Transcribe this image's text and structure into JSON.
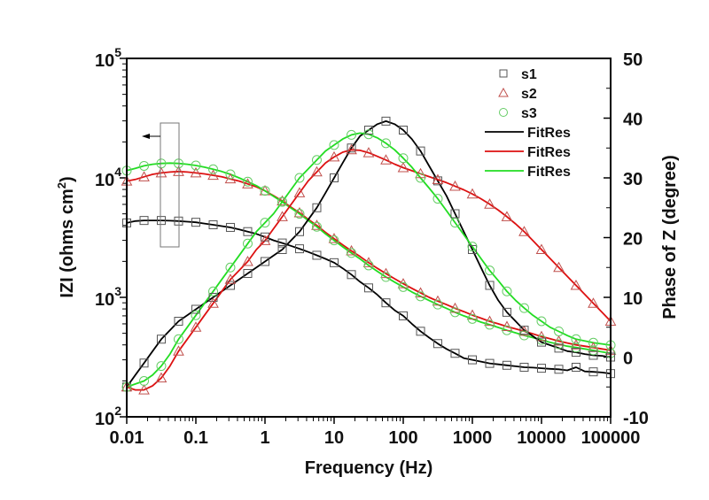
{
  "chart_data": {
    "type": "line",
    "xlabel": "Frequency (Hz)",
    "ylabel_left": "IZI (ohms cm2)",
    "ylabel_left_parts": {
      "main": "IZI (ohms cm",
      "sup": "2",
      "end": ")"
    },
    "ylabel_right": "Phase of Z (degree)",
    "xscale": "log",
    "xlim": [
      0.01,
      100000
    ],
    "ylim_left": [
      100,
      100000
    ],
    "yscale_left": "log",
    "ylim_right": [
      -10,
      50
    ],
    "x_ticks": [
      "0.01",
      "0.1",
      "1",
      "10",
      "100",
      "1000",
      "10000",
      "100000"
    ],
    "y_left_ticks": [
      {
        "base": "10",
        "exp": "2"
      },
      {
        "base": "10",
        "exp": "3"
      },
      {
        "base": "10",
        "exp": "4"
      },
      {
        "base": "10",
        "exp": "5"
      }
    ],
    "y_right_ticks": [
      "-10",
      "0",
      "10",
      "20",
      "30",
      "40",
      "50"
    ],
    "legend_position": "top-right",
    "legend": [
      {
        "label": "s1",
        "kind": "marker",
        "marker": "square",
        "color": "#555555"
      },
      {
        "label": "s2",
        "kind": "marker",
        "marker": "triangle",
        "color": "#c0504d"
      },
      {
        "label": "s3",
        "kind": "marker",
        "marker": "circle",
        "color": "#66cc66"
      },
      {
        "label": "FitRes",
        "kind": "line",
        "color": "#000000"
      },
      {
        "label": "FitRes",
        "kind": "line",
        "color": "#dd1111"
      },
      {
        "label": "FitRes",
        "kind": "line",
        "color": "#22dd22"
      }
    ],
    "annotation": {
      "text": "",
      "arrow": "left",
      "points_to": "left axis"
    },
    "series": [
      {
        "name": "s1",
        "axis": "left",
        "quantity": "modulus",
        "marker": "square",
        "color": "#555555",
        "x": [
          0.01,
          0.0133,
          0.0178,
          0.0237,
          0.0316,
          0.0422,
          0.0562,
          0.075,
          0.1,
          0.133,
          0.178,
          0.237,
          0.316,
          0.422,
          0.562,
          0.75,
          1,
          1.33,
          1.78,
          2.37,
          3.16,
          4.22,
          5.62,
          7.5,
          10,
          13.3,
          17.8,
          23.7,
          31.6,
          42.2,
          56.2,
          75,
          100,
          133,
          178,
          237,
          316,
          422,
          562,
          750,
          1000,
          1330,
          1780,
          2370,
          3160,
          4220,
          5620,
          7500,
          10000,
          13300,
          17800,
          23700,
          31600,
          42200,
          56200,
          75000,
          100000
        ],
        "y": [
          4200,
          4350,
          4400,
          4400,
          4400,
          4380,
          4350,
          4300,
          4250,
          4150,
          4050,
          3950,
          3850,
          3700,
          3550,
          3400,
          3200,
          3000,
          2850,
          2700,
          2550,
          2400,
          2250,
          2100,
          1950,
          1750,
          1550,
          1350,
          1200,
          1050,
          900,
          780,
          700,
          600,
          520,
          460,
          410,
          370,
          340,
          310,
          300,
          290,
          280,
          275,
          270,
          265,
          260,
          258,
          255,
          252,
          250,
          245,
          260,
          240,
          238,
          235,
          230
        ]
      },
      {
        "name": "s2",
        "axis": "left",
        "quantity": "modulus",
        "marker": "triangle",
        "color": "#c0504d",
        "x": [
          0.01,
          0.0133,
          0.0178,
          0.0237,
          0.0316,
          0.0422,
          0.0562,
          0.075,
          0.1,
          0.133,
          0.178,
          0.237,
          0.316,
          0.422,
          0.562,
          0.75,
          1,
          1.33,
          1.78,
          2.37,
          3.16,
          4.22,
          5.62,
          7.5,
          10,
          13.3,
          17.8,
          23.7,
          31.6,
          42.2,
          56.2,
          75,
          100,
          133,
          178,
          237,
          316,
          422,
          562,
          750,
          1000,
          1330,
          1780,
          2370,
          3160,
          4220,
          5620,
          7500,
          10000,
          13300,
          17800,
          23700,
          31600,
          42200,
          56200,
          75000,
          100000
        ],
        "y": [
          9400,
          9700,
          10200,
          10700,
          11000,
          11200,
          11300,
          11200,
          11000,
          10800,
          10500,
          10200,
          9800,
          9400,
          8900,
          8400,
          7800,
          7100,
          6400,
          5700,
          5100,
          4500,
          4000,
          3500,
          3100,
          2750,
          2450,
          2200,
          1950,
          1750,
          1580,
          1430,
          1300,
          1190,
          1090,
          1000,
          930,
          870,
          810,
          760,
          710,
          670,
          630,
          600,
          570,
          545,
          520,
          495,
          470,
          450,
          430,
          415,
          400,
          390,
          380,
          370,
          360
        ]
      },
      {
        "name": "s3",
        "axis": "left",
        "quantity": "modulus",
        "marker": "circle",
        "color": "#66cc66",
        "x": [
          0.01,
          0.0133,
          0.0178,
          0.0237,
          0.0316,
          0.0422,
          0.0562,
          0.075,
          0.1,
          0.133,
          0.178,
          0.237,
          0.316,
          0.422,
          0.562,
          0.75,
          1,
          1.33,
          1.78,
          2.37,
          3.16,
          4.22,
          5.62,
          7.5,
          10,
          13.3,
          17.8,
          23.7,
          31.6,
          42.2,
          56.2,
          75,
          100,
          133,
          178,
          237,
          316,
          422,
          562,
          750,
          1000,
          1330,
          1780,
          2370,
          3160,
          4220,
          5620,
          7500,
          10000,
          13300,
          17800,
          23700,
          31600,
          42200,
          56200,
          75000,
          100000
        ],
        "y": [
          11500,
          12000,
          12600,
          13000,
          13200,
          13300,
          13200,
          13000,
          12700,
          12300,
          11800,
          11300,
          10700,
          10000,
          9300,
          8600,
          7800,
          7000,
          6300,
          5600,
          5000,
          4400,
          3900,
          3400,
          3000,
          2650,
          2350,
          2100,
          1850,
          1650,
          1480,
          1340,
          1220,
          1110,
          1020,
          940,
          870,
          810,
          750,
          700,
          660,
          620,
          590,
          560,
          530,
          505,
          480,
          460,
          440,
          420,
          405,
          390,
          380,
          370,
          360,
          350,
          340
        ]
      },
      {
        "name": "s1",
        "axis": "right",
        "quantity": "phase",
        "marker": "square",
        "color": "#555555",
        "x": [
          0.01,
          0.0133,
          0.0178,
          0.0237,
          0.0316,
          0.0422,
          0.0562,
          0.075,
          0.1,
          0.133,
          0.178,
          0.237,
          0.316,
          0.422,
          0.562,
          0.75,
          1,
          1.33,
          1.78,
          2.37,
          3.16,
          4.22,
          5.62,
          7.5,
          10,
          13.3,
          17.8,
          23.7,
          31.6,
          42.2,
          56.2,
          75,
          100,
          133,
          178,
          237,
          316,
          422,
          562,
          750,
          1000,
          1330,
          1780,
          2370,
          3160,
          4220,
          5620,
          7500,
          10000,
          13300,
          17800,
          23700,
          31600,
          42200,
          56200,
          75000,
          100000
        ],
        "y": [
          -5,
          -3,
          -1,
          1,
          3,
          4.5,
          6,
          7,
          8,
          9,
          10,
          11,
          12,
          13,
          14,
          15,
          16,
          17,
          18,
          19.5,
          21,
          23,
          25,
          27.5,
          30,
          32.5,
          35,
          37,
          38,
          39,
          39.5,
          39,
          38,
          36.5,
          34.5,
          32,
          29.5,
          27,
          24,
          21,
          18,
          15,
          12,
          9.5,
          7.5,
          6,
          4.5,
          3.5,
          2.5,
          2,
          1.5,
          1,
          0.8,
          0.5,
          0.3,
          0.2,
          0
        ]
      },
      {
        "name": "s2",
        "axis": "right",
        "quantity": "phase",
        "marker": "triangle",
        "color": "#c0504d",
        "x": [
          0.01,
          0.0133,
          0.0178,
          0.0237,
          0.0316,
          0.0422,
          0.0562,
          0.075,
          0.1,
          0.133,
          0.178,
          0.237,
          0.316,
          0.422,
          0.562,
          0.75,
          1,
          1.33,
          1.78,
          2.37,
          3.16,
          4.22,
          5.62,
          7.5,
          10,
          13.3,
          17.8,
          23.7,
          31.6,
          42.2,
          56.2,
          75,
          100,
          133,
          178,
          237,
          316,
          422,
          562,
          750,
          1000,
          1330,
          1780,
          2370,
          3160,
          4220,
          5620,
          7500,
          10000,
          13300,
          17800,
          23700,
          31600,
          42200,
          56200,
          75000,
          100000
        ],
        "y": [
          -5,
          -5.5,
          -5.5,
          -4.8,
          -3.5,
          -1.5,
          1,
          3,
          5,
          7,
          9,
          11,
          13,
          14.5,
          16,
          18,
          19.5,
          21.5,
          23.5,
          25.5,
          27.5,
          29.5,
          31,
          32.5,
          33.5,
          34.3,
          34.7,
          34.6,
          34.2,
          33.6,
          33,
          32.3,
          31.7,
          31.2,
          30.7,
          30.2,
          29.7,
          29.2,
          28.6,
          28,
          27.3,
          26.5,
          25.6,
          24.6,
          23.5,
          22.3,
          21,
          19.5,
          18,
          16.5,
          15,
          13.5,
          12,
          10.5,
          9,
          7.5,
          6
        ]
      },
      {
        "name": "s3",
        "axis": "right",
        "quantity": "phase",
        "marker": "circle",
        "color": "#66cc66",
        "x": [
          0.01,
          0.0133,
          0.0178,
          0.0237,
          0.0316,
          0.0422,
          0.0562,
          0.075,
          0.1,
          0.133,
          0.178,
          0.237,
          0.316,
          0.422,
          0.562,
          0.75,
          1,
          1.33,
          1.78,
          2.37,
          3.16,
          4.22,
          5.62,
          7.5,
          10,
          13.3,
          17.8,
          23.7,
          31.6,
          42.2,
          56.2,
          75,
          100,
          133,
          178,
          237,
          316,
          422,
          562,
          750,
          1000,
          1330,
          1780,
          2370,
          3160,
          4220,
          5620,
          7500,
          10000,
          13300,
          17800,
          23700,
          31600,
          42200,
          56200,
          75000,
          100000
        ],
        "y": [
          -5,
          -4.5,
          -4,
          -3,
          -1.5,
          0.5,
          3,
          5,
          7,
          9,
          11,
          13,
          15,
          17,
          19,
          21,
          22.5,
          24,
          26,
          28,
          30,
          31.5,
          33,
          34.5,
          35.5,
          36.5,
          37.2,
          37.5,
          37.3,
          36.7,
          35.8,
          34.7,
          33.3,
          31.8,
          30,
          28.3,
          26.5,
          24.5,
          22.5,
          20.5,
          18.5,
          16.5,
          14.5,
          12.8,
          11,
          9.5,
          8.2,
          7,
          6,
          5,
          4.3,
          3.6,
          3,
          2.7,
          2.4,
          2.2,
          2
        ]
      }
    ]
  }
}
